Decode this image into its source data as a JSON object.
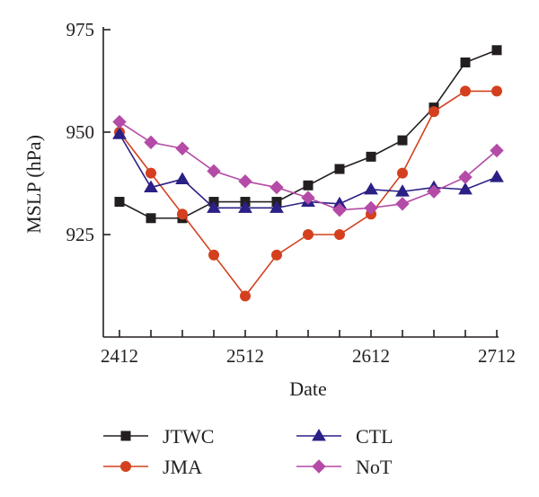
{
  "chart_data": {
    "type": "line",
    "xlabel": "Date",
    "ylabel": "MSLP (hPa)",
    "ylim": [
      900,
      975
    ],
    "yticks": [
      925,
      950,
      975
    ],
    "x_tick_labels": [
      {
        "index": 0,
        "label": "2412"
      },
      {
        "index": 4,
        "label": "2512"
      },
      {
        "index": 8,
        "label": "2612"
      },
      {
        "index": 12,
        "label": "2712"
      }
    ],
    "x": [
      "2412",
      "2418",
      "2500",
      "2506",
      "2512",
      "2518",
      "2600",
      "2606",
      "2612",
      "2618",
      "2700",
      "2706",
      "2712"
    ],
    "legend_position": "bottom",
    "series": [
      {
        "name": "JTWC",
        "color": "#231f20",
        "marker": "square",
        "values": [
          933,
          929,
          929,
          933,
          933,
          933,
          937,
          941,
          944,
          948,
          956,
          967,
          970
        ]
      },
      {
        "name": "JMA",
        "color": "#d4401f",
        "marker": "circle",
        "values": [
          950,
          940,
          930,
          920,
          910,
          920,
          925,
          925,
          930,
          940,
          955,
          960,
          960
        ]
      },
      {
        "name": "CTL",
        "color": "#2b2085",
        "marker": "triangle",
        "values": [
          949.5,
          936.5,
          938.5,
          931.5,
          931.5,
          931.5,
          933,
          932.5,
          936,
          935.5,
          936.5,
          936,
          939
        ]
      },
      {
        "name": "NoT",
        "color": "#b44ba6",
        "marker": "diamond",
        "values": [
          952.5,
          947.5,
          946,
          940.5,
          938,
          936.5,
          934,
          931,
          931.5,
          932.5,
          935.5,
          939,
          945.5
        ]
      }
    ]
  }
}
